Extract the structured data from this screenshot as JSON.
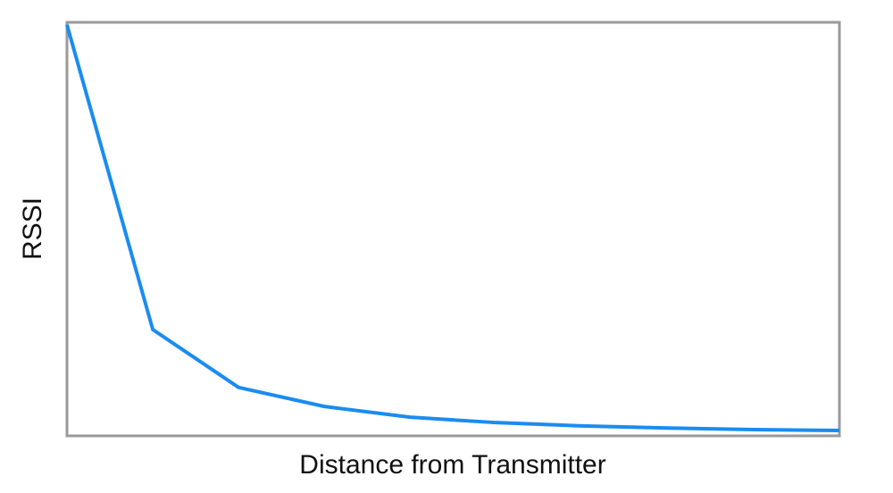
{
  "chart_data": {
    "type": "line",
    "x_label": "Distance from Transmitter",
    "y_label": "RSSI",
    "x": [
      0,
      1,
      2,
      3,
      4,
      5,
      6,
      7,
      8,
      9
    ],
    "series": [
      {
        "color": "#1a8cf0",
        "values": [
          99.4,
          25.7,
          11.7,
          7.1,
          4.5,
          3.2,
          2.4,
          1.9,
          1.5,
          1.3
        ]
      }
    ],
    "xlim": [
      0,
      9
    ],
    "ylim": [
      0,
      100
    ],
    "frame_color": "#9a9a9a"
  }
}
